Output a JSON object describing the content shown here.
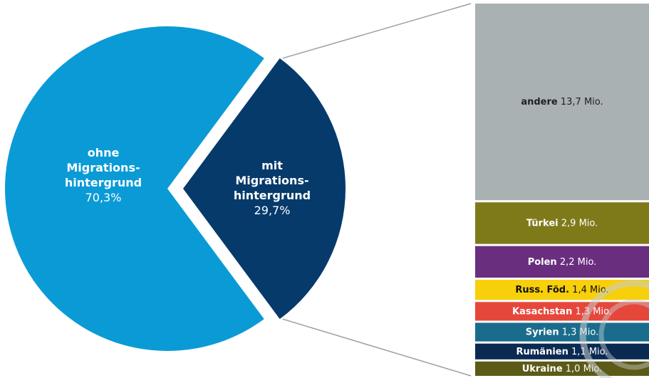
{
  "chart_data": [
    {
      "type": "pie",
      "slices": [
        {
          "label": [
            "ohne",
            "Migrations-",
            "hintergrund"
          ],
          "value_label": "70,3%",
          "value": 70.3,
          "color": "#0a9bd6"
        },
        {
          "label": [
            "mit",
            "Migrations-",
            "hintergrund"
          ],
          "value_label": "29,7%",
          "value": 29.7,
          "color": "#053a6b",
          "exploded": true
        }
      ]
    },
    {
      "type": "bar",
      "orientation": "stacked-vertical",
      "unit": "Mio.",
      "segments": [
        {
          "name": "andere",
          "value": 13.7,
          "value_label": "13,7",
          "color": "#a9b1b3",
          "text_color": "#222222"
        },
        {
          "name": "Türkei",
          "value": 2.9,
          "value_label": "2,9",
          "color": "#7f7a19",
          "text_color": "#ffffff"
        },
        {
          "name": "Polen",
          "value": 2.2,
          "value_label": "2,2",
          "color": "#6a2e7f",
          "text_color": "#ffffff"
        },
        {
          "name": "Russ. Föd.",
          "value": 1.4,
          "value_label": "1,4",
          "color": "#f7cf0a",
          "text_color": "#111111"
        },
        {
          "name": "Kasachstan",
          "value": 1.3,
          "value_label": "1,3",
          "color": "#e6473b",
          "text_color": "#ffffff"
        },
        {
          "name": "Syrien",
          "value": 1.3,
          "value_label": "1,3",
          "color": "#1a6c8c",
          "text_color": "#ffffff"
        },
        {
          "name": "Rumänien",
          "value": 1.1,
          "value_label": "1,1",
          "color": "#0b2a52",
          "text_color": "#ffffff"
        },
        {
          "name": "Ukraine",
          "value": 1.0,
          "value_label": "1,0",
          "color": "#5c5a17",
          "text_color": "#ffffff"
        }
      ]
    }
  ]
}
